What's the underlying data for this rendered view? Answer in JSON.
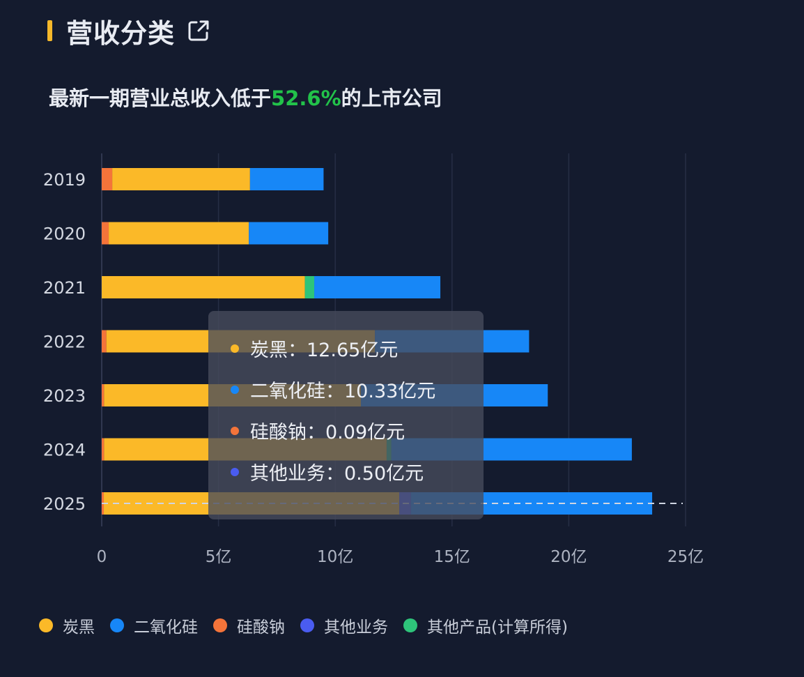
{
  "header": {
    "title": "营收分类",
    "link_icon": "external-link-icon"
  },
  "subtitle": {
    "prefix": "最新一期营业总收入低于",
    "highlight": "52.6%",
    "suffix": "的上市公司"
  },
  "colors": {
    "background": "#141b2e",
    "accent": "#f5b82a",
    "highlight": "#22c24a",
    "tan_hei": "#fbb928",
    "er_yang_hua_gui": "#1787f7",
    "gui_suan_na": "#f4743a",
    "qi_ta_ye_wu": "#4a5cf0",
    "qi_ta_chan_pin": "#2ec47a"
  },
  "chart_data": {
    "type": "bar",
    "orientation": "horizontal",
    "stacked": true,
    "categories": [
      "2019",
      "2020",
      "2021",
      "2022",
      "2023",
      "2024",
      "2025"
    ],
    "xlim": [
      0,
      25
    ],
    "x_ticks": [
      "0",
      "5亿",
      "10亿",
      "15亿",
      "20亿",
      "25亿"
    ],
    "x_unit": "亿元",
    "grid": true,
    "legend_position": "bottom",
    "series": [
      {
        "name": "硅酸钠",
        "color": "#f4743a",
        "values": [
          0.45,
          0.3,
          0.0,
          0.2,
          0.1,
          0.1,
          0.09
        ]
      },
      {
        "name": "炭黑",
        "color": "#fbb928",
        "values": [
          5.9,
          6.0,
          8.7,
          11.5,
          11.0,
          12.1,
          12.65
        ]
      },
      {
        "name": "其他产品(计算所得)",
        "color": "#2ec47a",
        "values": [
          0.0,
          0.0,
          0.4,
          0.0,
          0.0,
          0.2,
          0.0
        ]
      },
      {
        "name": "其他业务",
        "color": "#4a5cf0",
        "values": [
          0.0,
          0.0,
          0.0,
          0.0,
          0.0,
          0.0,
          0.5
        ]
      },
      {
        "name": "二氧化硅",
        "color": "#1787f7",
        "values": [
          3.15,
          3.4,
          5.4,
          6.6,
          8.0,
          10.3,
          10.33
        ]
      }
    ],
    "reference_line": {
      "category": "2025",
      "style": "dashed"
    }
  },
  "tooltip": {
    "rows": [
      {
        "label": "炭黑：12.65亿元",
        "color": "#fbb928"
      },
      {
        "label": "二氧化硅：10.33亿元",
        "color": "#1787f7"
      },
      {
        "label": "硅酸钠：0.09亿元",
        "color": "#f4743a"
      },
      {
        "label": "其他业务：0.50亿元",
        "color": "#4a5cf0"
      }
    ]
  },
  "legend": [
    {
      "label": "炭黑",
      "color": "#fbb928"
    },
    {
      "label": "二氧化硅",
      "color": "#1787f7"
    },
    {
      "label": "硅酸钠",
      "color": "#f4743a"
    },
    {
      "label": "其他业务",
      "color": "#4a5cf0"
    },
    {
      "label": "其他产品(计算所得)",
      "color": "#2ec47a"
    }
  ]
}
